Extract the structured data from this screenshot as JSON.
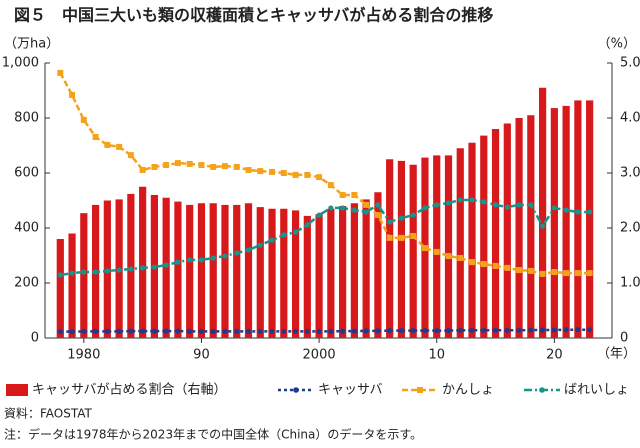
{
  "chart_data": {
    "type": "bar-line",
    "title": "図５　中国三大いも類の収穫面積とキャッサバが占める割合の推移",
    "ylabel": "（万ha）",
    "y2label": "（%）",
    "xlabel": "（年）",
    "x": [
      1978,
      1979,
      1980,
      1981,
      1982,
      1983,
      1984,
      1985,
      1986,
      1987,
      1988,
      1989,
      1990,
      1991,
      1992,
      1993,
      1994,
      1995,
      1996,
      1997,
      1998,
      1999,
      2000,
      2001,
      2002,
      2003,
      2004,
      2005,
      2006,
      2007,
      2008,
      2009,
      2010,
      2011,
      2012,
      2013,
      2014,
      2015,
      2016,
      2017,
      2018,
      2019,
      2020,
      2021,
      2022,
      2023
    ],
    "xlim": [
      1976.7,
      2024.9
    ],
    "xticks": [
      {
        "value": 1980,
        "label": "1980"
      },
      {
        "value": 1990,
        "label": "90"
      },
      2000,
      {
        "value": 2010,
        "label": "10"
      },
      {
        "value": 2020,
        "label": "20"
      }
    ],
    "ylim": [
      0,
      1000
    ],
    "yticks": [
      0,
      200,
      400,
      600,
      800,
      {
        "value": 1000,
        "label": "1,000"
      }
    ],
    "y2lim": [
      0,
      5
    ],
    "y2ticks": [
      0,
      {
        "value": 1,
        "label": "1.0"
      },
      {
        "value": 2,
        "label": "2.0"
      },
      {
        "value": 3,
        "label": "3.0"
      },
      {
        "value": 4,
        "label": "4.0"
      },
      {
        "value": 5,
        "label": "5.0"
      }
    ],
    "series": [
      {
        "name": "キャッサバが占める割合（右軸）",
        "kind": "bar",
        "axis": "y2",
        "color": "#d7191c",
        "values": [
          1.8,
          1.9,
          2.27,
          2.42,
          2.5,
          2.52,
          2.62,
          2.75,
          2.6,
          2.55,
          2.48,
          2.42,
          2.45,
          2.45,
          2.42,
          2.42,
          2.45,
          2.38,
          2.35,
          2.35,
          2.32,
          2.22,
          2.25,
          2.35,
          2.4,
          2.45,
          2.52,
          2.65,
          3.25,
          3.22,
          3.15,
          3.28,
          3.32,
          3.32,
          3.45,
          3.55,
          3.68,
          3.8,
          3.9,
          4.0,
          4.05,
          4.55,
          4.18,
          4.22,
          4.32,
          4.32
        ]
      },
      {
        "name": "キャッサバ",
        "kind": "line",
        "color": "#1f3a8a",
        "marker": "circle",
        "dash": "3,3",
        "values": [
          23,
          23,
          24,
          24,
          24,
          24,
          25,
          25,
          25,
          25,
          25,
          24,
          24,
          24,
          24,
          24,
          24,
          24,
          24,
          24,
          24,
          24,
          24,
          24,
          25,
          25,
          26,
          26,
          27,
          27,
          27,
          27,
          27,
          27,
          28,
          28,
          28,
          28,
          28,
          28,
          29,
          29,
          29,
          30,
          30,
          30
        ]
      },
      {
        "name": "かんしょ",
        "kind": "line",
        "color": "#f5a21b",
        "marker": "square",
        "dash": "6,3",
        "values": [
          964,
          884,
          793,
          731,
          702,
          695,
          665,
          611,
          622,
          629,
          636,
          633,
          629,
          622,
          625,
          622,
          611,
          607,
          604,
          600,
          593,
          593,
          585,
          556,
          520,
          520,
          484,
          447,
          364,
          364,
          371,
          327,
          313,
          298,
          291,
          276,
          269,
          262,
          255,
          247,
          244,
          233,
          240,
          236,
          236,
          236
        ]
      },
      {
        "name": "ばれいしょ",
        "kind": "line",
        "color": "#14968f",
        "marker": "circle",
        "dash": "8,3,2,3",
        "values": [
          229,
          236,
          240,
          240,
          244,
          247,
          251,
          255,
          258,
          265,
          276,
          284,
          284,
          291,
          298,
          309,
          320,
          338,
          356,
          375,
          385,
          411,
          447,
          473,
          473,
          465,
          458,
          484,
          422,
          436,
          447,
          473,
          484,
          491,
          502,
          502,
          495,
          484,
          476,
          484,
          484,
          407,
          473,
          465,
          458,
          458
        ]
      }
    ],
    "notes": [
      "資料：FAOSTAT",
      "注：データは1978年から2023年までの中国全体（China）のデータを示す。"
    ]
  }
}
